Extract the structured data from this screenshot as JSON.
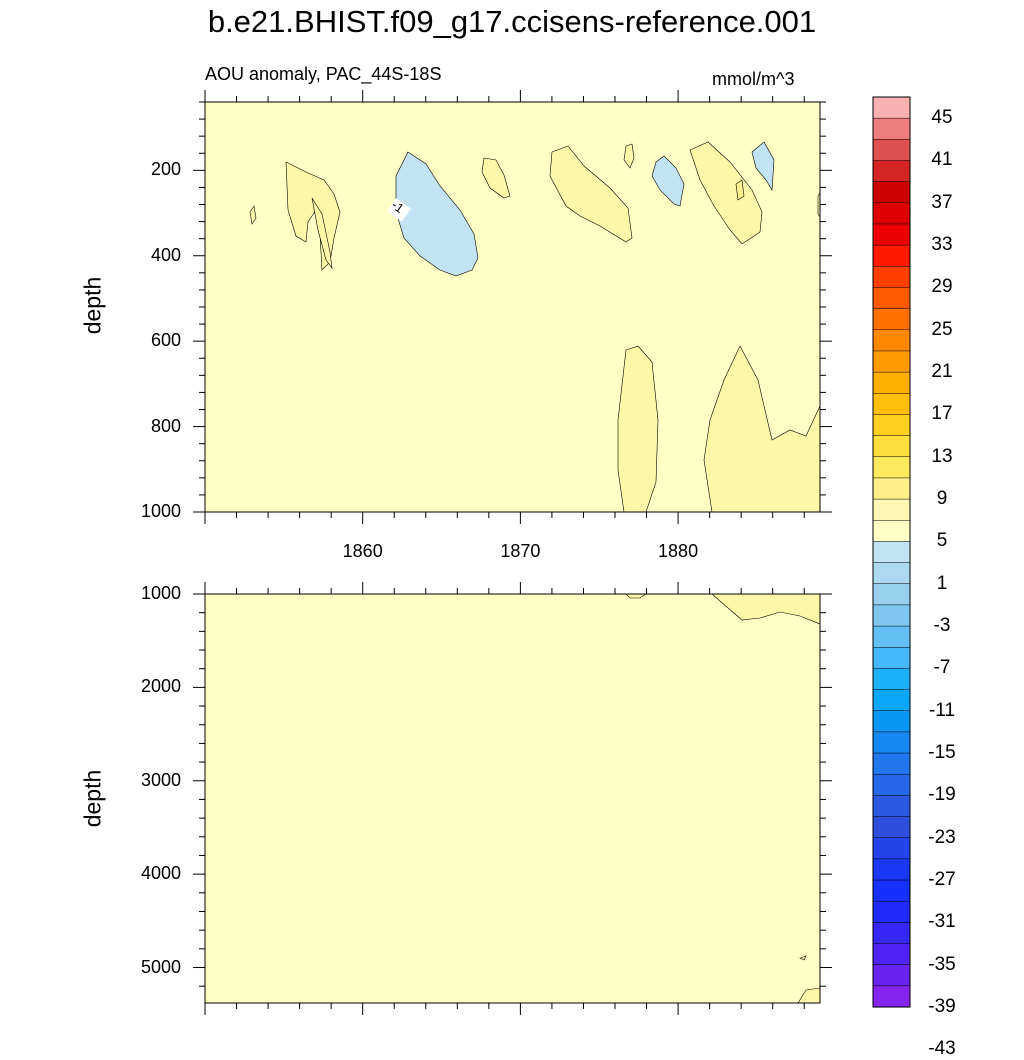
{
  "title": "b.e21.BHIST.f09_g17.ccisens-reference.001",
  "chart_data": [
    {
      "type": "contour",
      "panel": "upper",
      "subtitle_left": "AOU anomaly, PAC_44S-18S",
      "subtitle_right": "mmol/m^3",
      "xlabel": "",
      "ylabel": "depth",
      "xlim": [
        1850,
        1889
      ],
      "ylim": [
        1000,
        40
      ],
      "y_inverted": true,
      "x_ticks": [
        1860,
        1870,
        1880
      ],
      "x_tick_labels": [
        "1860",
        "1870",
        "1880"
      ],
      "y_ticks": [
        200,
        400,
        600,
        800,
        1000
      ],
      "y_tick_labels": [
        "200",
        "400",
        "600",
        "800",
        "1000"
      ],
      "background_level": "-1 to 1",
      "contour_labels": [
        {
          "x": 1862.8,
          "y": 265,
          "text": "-1"
        }
      ]
    },
    {
      "type": "contour",
      "panel": "lower",
      "xlabel": "",
      "ylabel": "depth",
      "xlim": [
        1850,
        1889
      ],
      "ylim": [
        5380,
        1000
      ],
      "y_inverted": true,
      "x_ticks": [
        1860,
        1870,
        1880
      ],
      "y_ticks": [
        1000,
        2000,
        3000,
        4000,
        5000
      ],
      "y_tick_labels": [
        "1000",
        "2000",
        "3000",
        "4000",
        "5000"
      ],
      "background_level": "-1 to 1"
    }
  ],
  "colorbar": {
    "labels": [
      "45",
      "41",
      "37",
      "33",
      "29",
      "25",
      "21",
      "17",
      "13",
      "9",
      "5",
      "1",
      "-3",
      "-7",
      "-11",
      "-15",
      "-19",
      "-23",
      "-27",
      "-31",
      "-35",
      "-39",
      "-43"
    ],
    "colors": [
      "#f7b1b1",
      "#ee7d7d",
      "#e15050",
      "#d42424",
      "#cd0000",
      "#dc0000",
      "#ef0000",
      "#ff1a00",
      "#ff3f00",
      "#ff5a00",
      "#ff7000",
      "#ff8800",
      "#ff9b00",
      "#ffae00",
      "#ffbe0c",
      "#ffcf22",
      "#ffdf3c",
      "#ffea5e",
      "#fff08a",
      "#fff7b5",
      "#ffffc6",
      "#c2e3f4",
      "#acd9f0",
      "#97d0ee",
      "#7dc7f0",
      "#63bff4",
      "#44b8f8",
      "#1eb1fb",
      "#0aa7fb",
      "#0b97f8",
      "#1588f3",
      "#2077ef",
      "#2767ea",
      "#2c59e4",
      "#2e4fde",
      "#2444ec",
      "#1a38f6",
      "#1530ff",
      "#1f2bfb",
      "#3527f5",
      "#4f23f3",
      "#6a22f1",
      "#8624ef"
    ]
  }
}
